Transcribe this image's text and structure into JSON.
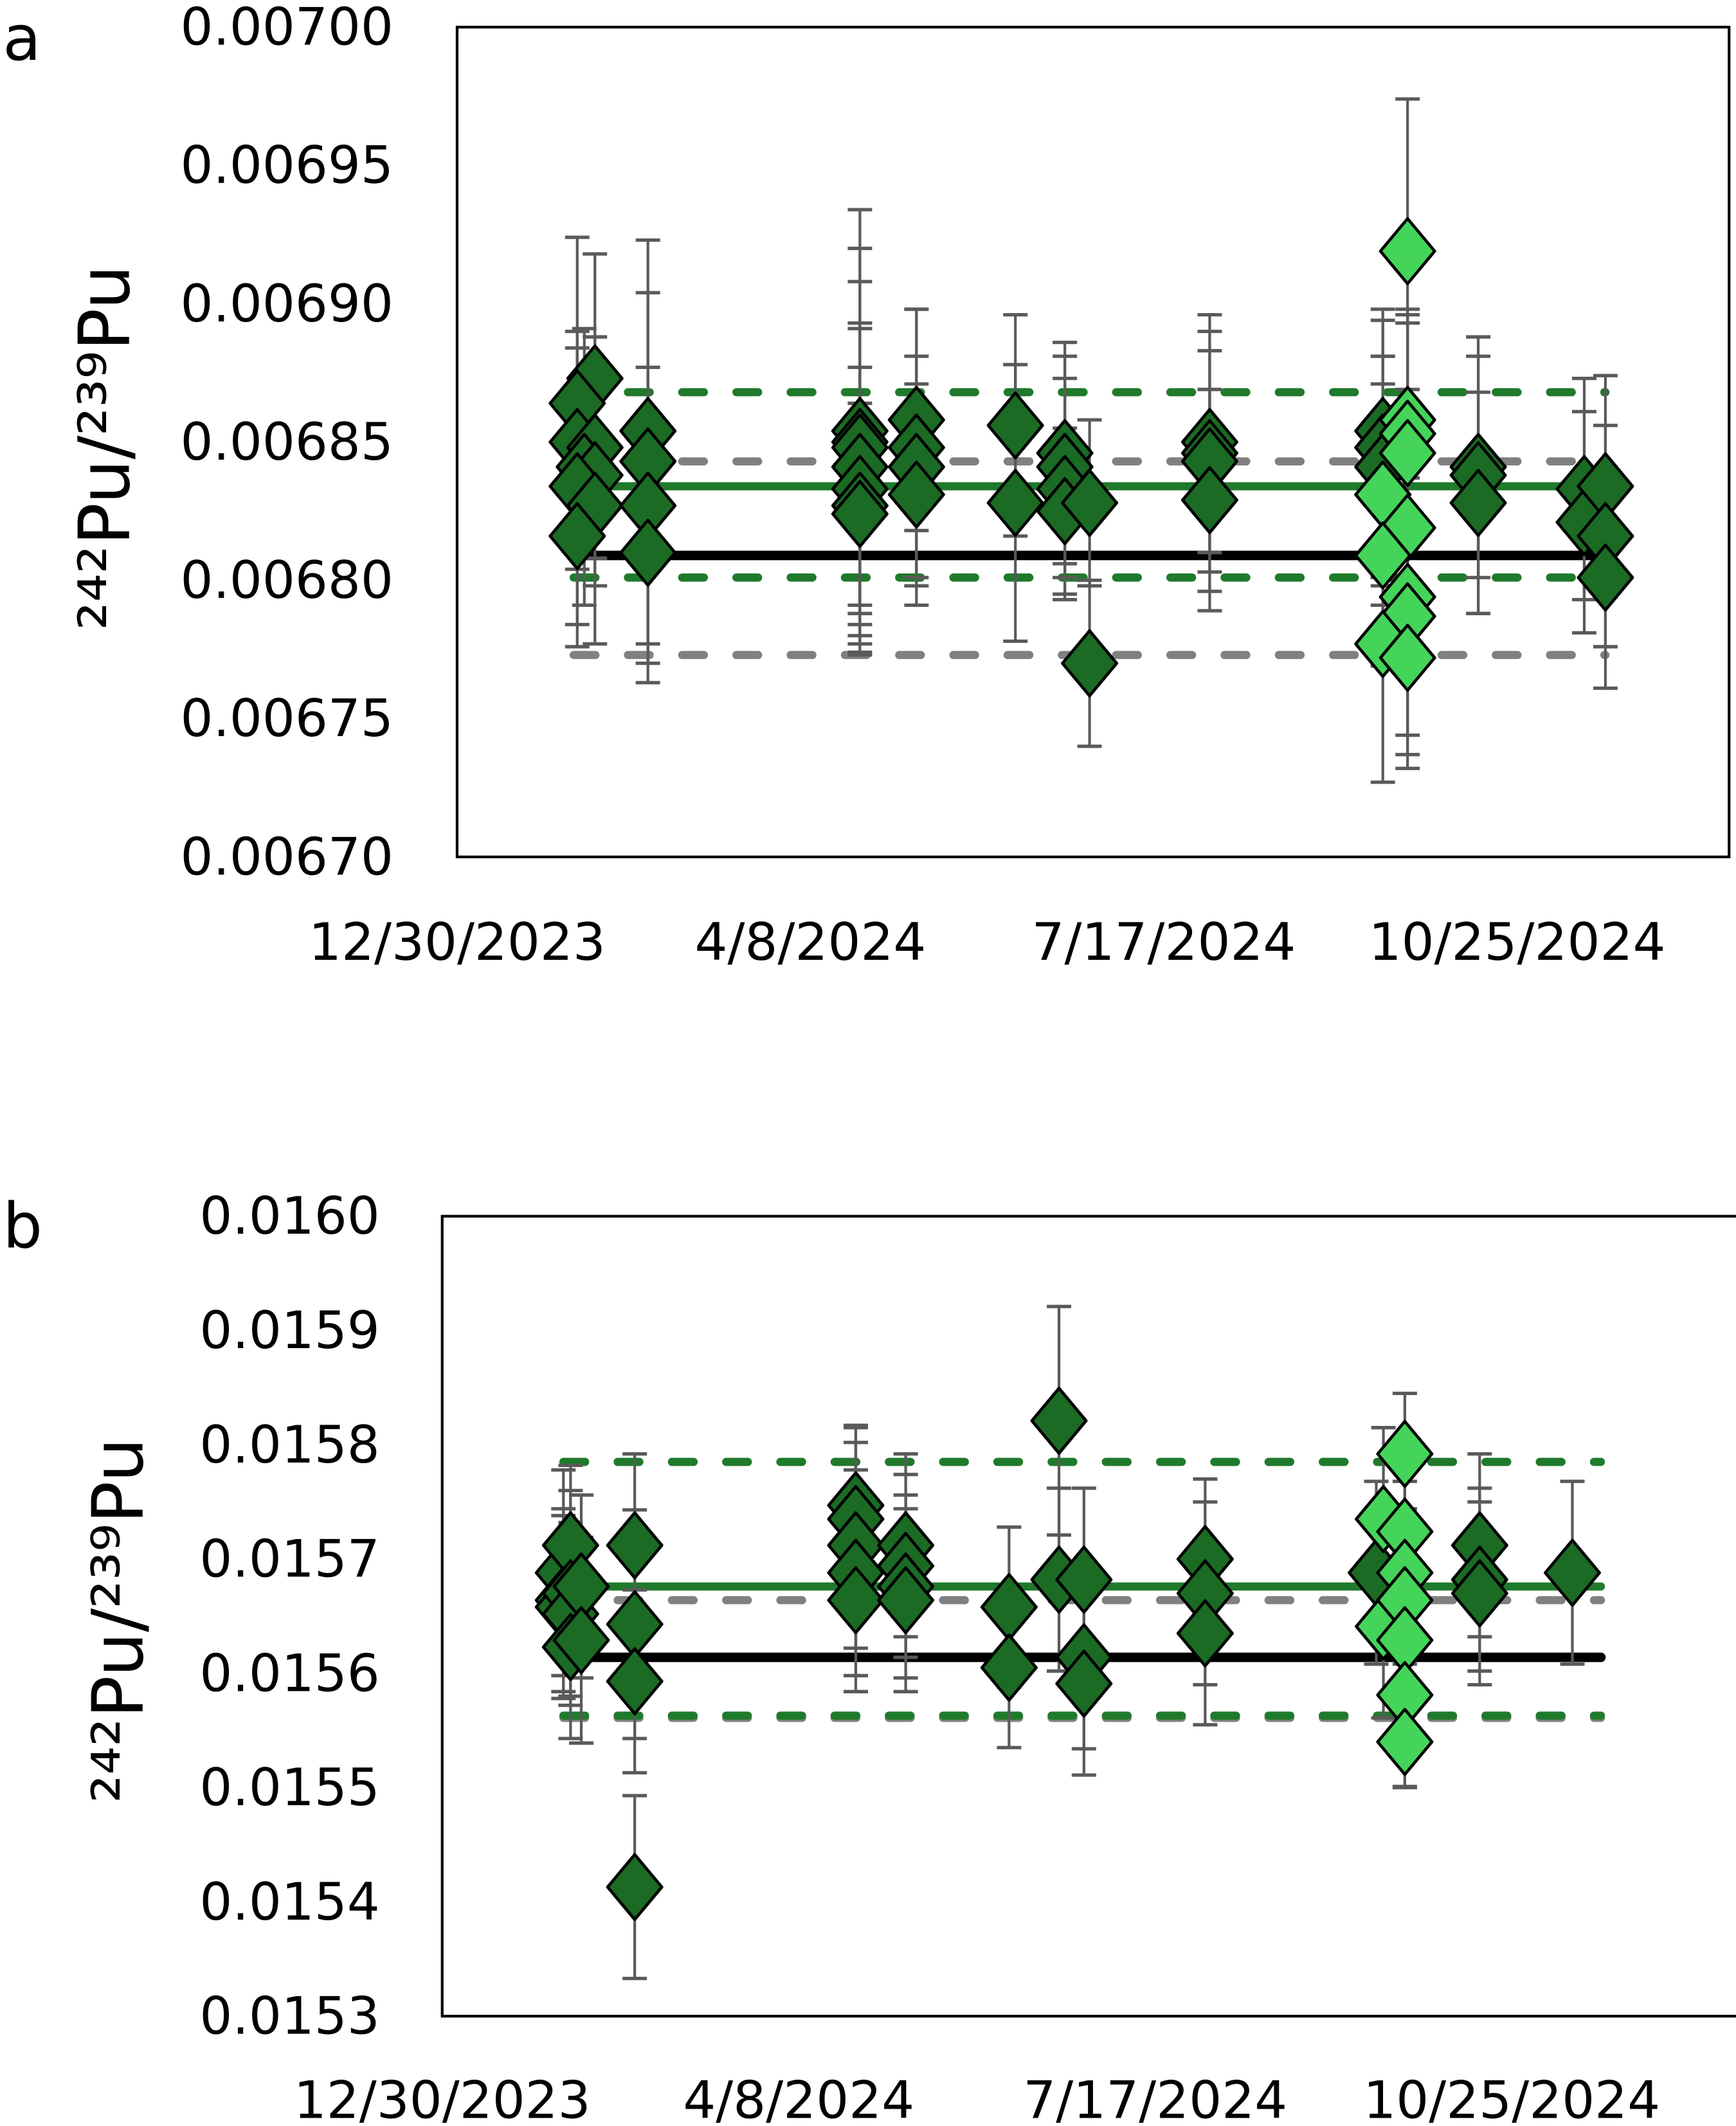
{
  "colors": {
    "dark_marker": "#1b6b24",
    "light_marker": "#45d45a",
    "error_bar": "#5a5a5a",
    "green_line": "#1f7a2b",
    "black_line": "#000000",
    "grey_line": "#808080"
  },
  "chart_data": [
    {
      "panel_label": "a",
      "type": "scatter",
      "ylabel": "²⁴²Pu/²³⁹Pu",
      "xlabel": "",
      "xlim": [
        "2023-12-30",
        "2024-12-24"
      ],
      "ylim": [
        0.0067,
        0.007
      ],
      "yticks": [
        "0.00670",
        "0.00675",
        "0.00680",
        "0.00685",
        "0.00690",
        "0.00695",
        "0.00700"
      ],
      "xticks": [
        {
          "date": "2023-12-30",
          "label": "12/30/2023"
        },
        {
          "date": "2024-04-08",
          "label": "4/8/2024"
        },
        {
          "date": "2024-07-17",
          "label": "7/17/2024"
        },
        {
          "date": "2024-10-25",
          "label": "10/25/2024"
        }
      ],
      "grid": false,
      "reference_lines": [
        {
          "y": 0.006773,
          "from": "2024-02-01",
          "to": "2024-11-19",
          "color": "grey",
          "style": "dashed"
        },
        {
          "y": 0.006843,
          "from": "2024-02-01",
          "to": "2024-11-19",
          "color": "grey",
          "style": "dashed"
        },
        {
          "y": 0.006868,
          "from": "2024-02-01",
          "to": "2024-11-19",
          "color": "green",
          "style": "dashed"
        },
        {
          "y": 0.006801,
          "from": "2024-02-01",
          "to": "2024-11-19",
          "color": "green",
          "style": "dashed"
        },
        {
          "y": 0.006834,
          "from": "2024-02-01",
          "to": "2024-11-19",
          "color": "green",
          "style": "solid"
        },
        {
          "y": 0.006809,
          "from": "2024-02-01",
          "to": "2024-11-19",
          "color": "black",
          "style": "solid"
        }
      ],
      "series": [
        {
          "marker": "dark",
          "points": [
            [
              "2024-02-07",
              0.006873,
              4.5e-05
            ],
            [
              "2024-02-02",
              0.006864,
              6e-05
            ],
            [
              "2024-02-02",
              0.00685,
              4e-05
            ],
            [
              "2024-02-07",
              0.006848,
              4e-05
            ],
            [
              "2024-02-04",
              0.006841,
              5e-05
            ],
            [
              "2024-02-07",
              0.006838,
              4e-05
            ],
            [
              "2024-02-02",
              0.006834,
              5e-05
            ],
            [
              "2024-02-07",
              0.006827,
              5e-05
            ],
            [
              "2024-02-02",
              0.006816,
              4e-05
            ],
            [
              "2024-02-22",
              0.006854,
              5e-05
            ],
            [
              "2024-02-22",
              0.006843,
              8e-05
            ],
            [
              "2024-02-22",
              0.006827,
              5e-05
            ],
            [
              "2024-02-22",
              0.00681,
              4e-05
            ],
            [
              "2024-04-22",
              0.006854,
              8e-05
            ],
            [
              "2024-04-22",
              0.00685,
              7e-05
            ],
            [
              "2024-04-22",
              0.006848,
              6e-05
            ],
            [
              "2024-04-22",
              0.006841,
              5e-05
            ],
            [
              "2024-04-22",
              0.006833,
              6e-05
            ],
            [
              "2024-04-22",
              0.006827,
              5e-05
            ],
            [
              "2024-04-22",
              0.006824,
              4e-05
            ],
            [
              "2024-05-08",
              0.006858,
              4e-05
            ],
            [
              "2024-05-08",
              0.006848,
              5e-05
            ],
            [
              "2024-05-08",
              0.006841,
              4e-05
            ],
            [
              "2024-05-08",
              0.006831,
              4e-05
            ],
            [
              "2024-06-05",
              0.006856,
              4e-05
            ],
            [
              "2024-06-05",
              0.006828,
              5e-05
            ],
            [
              "2024-06-19",
              0.006846,
              4e-05
            ],
            [
              "2024-06-19",
              0.006841,
              4e-05
            ],
            [
              "2024-06-19",
              0.006833,
              4e-05
            ],
            [
              "2024-06-19",
              0.006825,
              3e-05
            ],
            [
              "2024-06-26",
              0.006828,
              3e-05
            ],
            [
              "2024-06-26",
              0.00677,
              3e-05
            ],
            [
              "2024-07-30",
              0.00685,
              4e-05
            ],
            [
              "2024-07-30",
              0.006846,
              5e-05
            ],
            [
              "2024-07-30",
              0.006843,
              4e-05
            ],
            [
              "2024-07-30",
              0.006829,
              4e-05
            ],
            [
              "2024-09-17",
              0.006854,
              4e-05
            ],
            [
              "2024-09-17",
              0.006848,
              5e-05
            ],
            [
              "2024-09-17",
              0.006841,
              4e-05
            ],
            [
              "2024-09-17",
              0.006831,
              4e-05
            ],
            [
              "2024-10-14",
              0.006841,
              4e-05
            ],
            [
              "2024-10-14",
              0.006838,
              5e-05
            ],
            [
              "2024-10-14",
              0.006828,
              4e-05
            ],
            [
              "2024-11-13",
              0.006833,
              4e-05
            ],
            [
              "2024-11-13",
              0.006821,
              4e-05
            ],
            [
              "2024-11-19",
              0.006834,
              4e-05
            ],
            [
              "2024-11-19",
              0.006816,
              4e-05
            ],
            [
              "2024-11-19",
              0.006801,
              4e-05
            ]
          ]
        },
        {
          "marker": "light",
          "points": [
            [
              "2024-09-24",
              0.006919,
              5.5e-05
            ],
            [
              "2024-09-24",
              0.006858,
              4e-05
            ],
            [
              "2024-09-24",
              0.006853,
              4e-05
            ],
            [
              "2024-09-24",
              0.006846,
              5e-05
            ],
            [
              "2024-09-17",
              0.006831,
              5e-05
            ],
            [
              "2024-09-24",
              0.006819,
              5e-05
            ],
            [
              "2024-09-17",
              0.006809,
              4e-05
            ],
            [
              "2024-09-24",
              0.006794,
              5e-05
            ],
            [
              "2024-09-24",
              0.006787,
              5e-05
            ],
            [
              "2024-09-17",
              0.006777,
              5e-05
            ],
            [
              "2024-09-24",
              0.006772,
              4e-05
            ]
          ]
        }
      ]
    },
    {
      "panel_label": "b",
      "type": "scatter",
      "ylabel": "²⁴²Pu/²³⁹Pu",
      "xlabel": "",
      "xlim": [
        "2023-12-30",
        "2024-12-28"
      ],
      "ylim": [
        0.0153,
        0.016
      ],
      "yticks": [
        "0.0153",
        "0.0154",
        "0.0155",
        "0.0156",
        "0.0157",
        "0.0158",
        "0.0159",
        "0.0160"
      ],
      "xticks": [
        {
          "date": "2023-12-30",
          "label": "12/30/2023"
        },
        {
          "date": "2024-04-08",
          "label": "4/8/2024"
        },
        {
          "date": "2024-07-17",
          "label": "7/17/2024"
        },
        {
          "date": "2024-10-25",
          "label": "10/25/2024"
        }
      ],
      "grid": false,
      "reference_lines": [
        {
          "y": 0.015664,
          "from": "2024-02-02",
          "to": "2024-11-19",
          "color": "grey",
          "style": "dashed"
        },
        {
          "y": 0.015561,
          "from": "2024-02-02",
          "to": "2024-11-19",
          "color": "grey",
          "style": "dashed"
        },
        {
          "y": 0.015785,
          "from": "2024-02-02",
          "to": "2024-11-19",
          "color": "green",
          "style": "dashed"
        },
        {
          "y": 0.015563,
          "from": "2024-02-02",
          "to": "2024-11-19",
          "color": "green",
          "style": "dashed"
        },
        {
          "y": 0.015676,
          "from": "2024-02-02",
          "to": "2024-11-19",
          "color": "green",
          "style": "solid"
        },
        {
          "y": 0.015614,
          "from": "2024-02-02",
          "to": "2024-11-19",
          "color": "black",
          "style": "solid"
        }
      ],
      "series": [
        {
          "marker": "dark",
          "points": [
            [
              "2024-02-02",
              0.015688,
              9e-05
            ],
            [
              "2024-02-04",
              0.015712,
              7e-05
            ],
            [
              "2024-02-02",
              0.015664,
              8e-05
            ],
            [
              "2024-02-02",
              0.015658,
              8e-05
            ],
            [
              "2024-02-04",
              0.01567,
              9e-05
            ],
            [
              "2024-02-04",
              0.015652,
              8e-05
            ],
            [
              "2024-02-04",
              0.015623,
              8e-05
            ],
            [
              "2024-02-07",
              0.015676,
              8e-05
            ],
            [
              "2024-02-07",
              0.015629,
              9e-05
            ],
            [
              "2024-02-22",
              0.015712,
              8e-05
            ],
            [
              "2024-02-22",
              0.015643,
              0.0001
            ],
            [
              "2024-02-22",
              0.015593,
              8e-05
            ],
            [
              "2024-02-22",
              0.015413,
              8e-05
            ],
            [
              "2024-04-24",
              0.015747,
              7e-05
            ],
            [
              "2024-04-24",
              0.015735,
              8e-05
            ],
            [
              "2024-04-24",
              0.015712,
              9e-05
            ],
            [
              "2024-04-24",
              0.015688,
              9e-05
            ],
            [
              "2024-04-24",
              0.015664,
              8e-05
            ],
            [
              "2024-05-08",
              0.015712,
              8e-05
            ],
            [
              "2024-05-08",
              0.015694,
              8e-05
            ],
            [
              "2024-05-08",
              0.015676,
              8e-05
            ],
            [
              "2024-05-08",
              0.015664,
              8e-05
            ],
            [
              "2024-06-06",
              0.015658,
              7e-05
            ],
            [
              "2024-06-06",
              0.015605,
              7e-05
            ],
            [
              "2024-06-20",
              0.015821,
              0.0001
            ],
            [
              "2024-06-20",
              0.015682,
              8e-05
            ],
            [
              "2024-06-27",
              0.015682,
              8e-05
            ],
            [
              "2024-06-27",
              0.015614,
              8e-05
            ],
            [
              "2024-06-27",
              0.015591,
              8e-05
            ],
            [
              "2024-07-31",
              0.0157,
              7e-05
            ],
            [
              "2024-07-31",
              0.01567,
              8e-05
            ],
            [
              "2024-07-31",
              0.015635,
              8e-05
            ],
            [
              "2024-09-17",
              0.015688,
              8e-05
            ],
            [
              "2024-10-16",
              0.015712,
              8e-05
            ],
            [
              "2024-10-16",
              0.015682,
              8e-05
            ],
            [
              "2024-10-16",
              0.01567,
              8e-05
            ],
            [
              "2024-11-11",
              0.015688,
              8e-05
            ]
          ]
        },
        {
          "marker": "light",
          "points": [
            [
              "2024-09-25",
              0.015792,
              5.3e-05
            ],
            [
              "2024-09-19",
              0.015735,
              8e-05
            ],
            [
              "2024-09-25",
              0.015724,
              8e-05
            ],
            [
              "2024-09-25",
              0.015688,
              8e-05
            ],
            [
              "2024-09-19",
              0.015641,
              8e-05
            ],
            [
              "2024-09-25",
              0.015664,
              8e-05
            ],
            [
              "2024-09-25",
              0.015629,
              8e-05
            ],
            [
              "2024-09-25",
              0.015581,
              8e-05
            ],
            [
              "2024-09-25",
              0.01554,
              4e-05
            ]
          ]
        }
      ]
    }
  ]
}
